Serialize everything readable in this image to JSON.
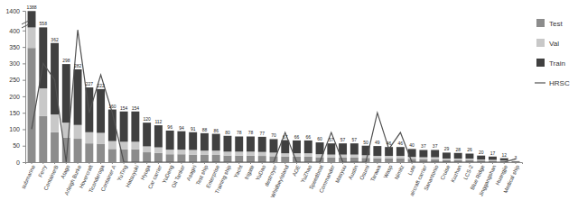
{
  "chart_data": {
    "type": "bar",
    "stacked": true,
    "legend": "right",
    "categories": [
      "submarine",
      "Ferry",
      "ContainerB",
      "Atago",
      "Arleigh Burke",
      "Hovercraft",
      "Ticonderoga",
      "Container A",
      "YuTing",
      "Hatsuyuki",
      "Hyuga",
      "Car carrier",
      "YuDeng",
      "Oil Tanker",
      "Asagiri",
      "Test ship",
      "Enterprise",
      "Training ship",
      "Yacht",
      "frigate",
      "YuDao",
      "destroyer",
      "WhidbeyIsland",
      "AOE",
      "YuZhao",
      "Speedboat",
      "Commander",
      "Masyuu",
      "Austin",
      "Osumi",
      "Tarawa",
      "Wasp",
      "Nimitz",
      "Lute",
      "aircraft carrier",
      "Sanantonio",
      "Cruise",
      "Kuzhan",
      "LCS-2",
      "Blue Ridge",
      "Jinggangshan",
      "Huangjie",
      "Medical ship"
    ],
    "series": [
      {
        "name": "Test",
        "type": "bar",
        "color": "#8c8c8c",
        "values": [
          347,
          140,
          91,
          75,
          71,
          57,
          56,
          40,
          39,
          39,
          30,
          28,
          24,
          24,
          23,
          22,
          22,
          20,
          20,
          20,
          19,
          18,
          17,
          17,
          17,
          15,
          14,
          14,
          14,
          13,
          12,
          12,
          12,
          10,
          9,
          9,
          7,
          7,
          7,
          5,
          4,
          3,
          1
        ]
      },
      {
        "name": "Val",
        "type": "bar",
        "color": "#c8c8c8",
        "values": [
          208,
          84,
          54,
          45,
          42,
          34,
          33,
          24,
          23,
          23,
          18,
          17,
          14,
          14,
          14,
          13,
          13,
          12,
          12,
          12,
          12,
          11,
          10,
          10,
          10,
          9,
          9,
          9,
          9,
          8,
          7,
          7,
          7,
          6,
          6,
          6,
          4,
          4,
          4,
          3,
          3,
          2,
          0
        ]
      },
      {
        "name": "Train",
        "type": "bar",
        "color": "#404040",
        "values": [
          833,
          334,
          217,
          178,
          169,
          136,
          133,
          96,
          92,
          92,
          72,
          67,
          58,
          56,
          54,
          53,
          51,
          48,
          46,
          46,
          46,
          41,
          40,
          39,
          39,
          36,
          34,
          34,
          34,
          29,
          30,
          27,
          27,
          24,
          22,
          22,
          18,
          17,
          15,
          12,
          10,
          7,
          2
        ]
      },
      {
        "name": "HRSC",
        "type": "line",
        "color": "#505050",
        "values": [
          100,
          300,
          250,
          0,
          430,
          150,
          265,
          150,
          0,
          0,
          0,
          0,
          0,
          0,
          0,
          0,
          0,
          0,
          0,
          0,
          0,
          0,
          90,
          0,
          0,
          0,
          90,
          0,
          0,
          0,
          150,
          40,
          90,
          0,
          0,
          0,
          0,
          0,
          0,
          0,
          0,
          0,
          10
        ]
      }
    ],
    "totals": [
      1388,
      558,
      362,
      298,
      282,
      227,
      222,
      160,
      154,
      154,
      120,
      112,
      96,
      94,
      91,
      88,
      86,
      80,
      78,
      78,
      77,
      70,
      67,
      66,
      66,
      60,
      57,
      57,
      57,
      50,
      49,
      46,
      46,
      40,
      37,
      37,
      29,
      28,
      26,
      20,
      17,
      12,
      3
    ],
    "ylim": [
      0,
      1400
    ],
    "yticks": [
      0,
      50,
      100,
      150,
      200,
      250,
      300,
      350,
      400,
      1400
    ]
  }
}
